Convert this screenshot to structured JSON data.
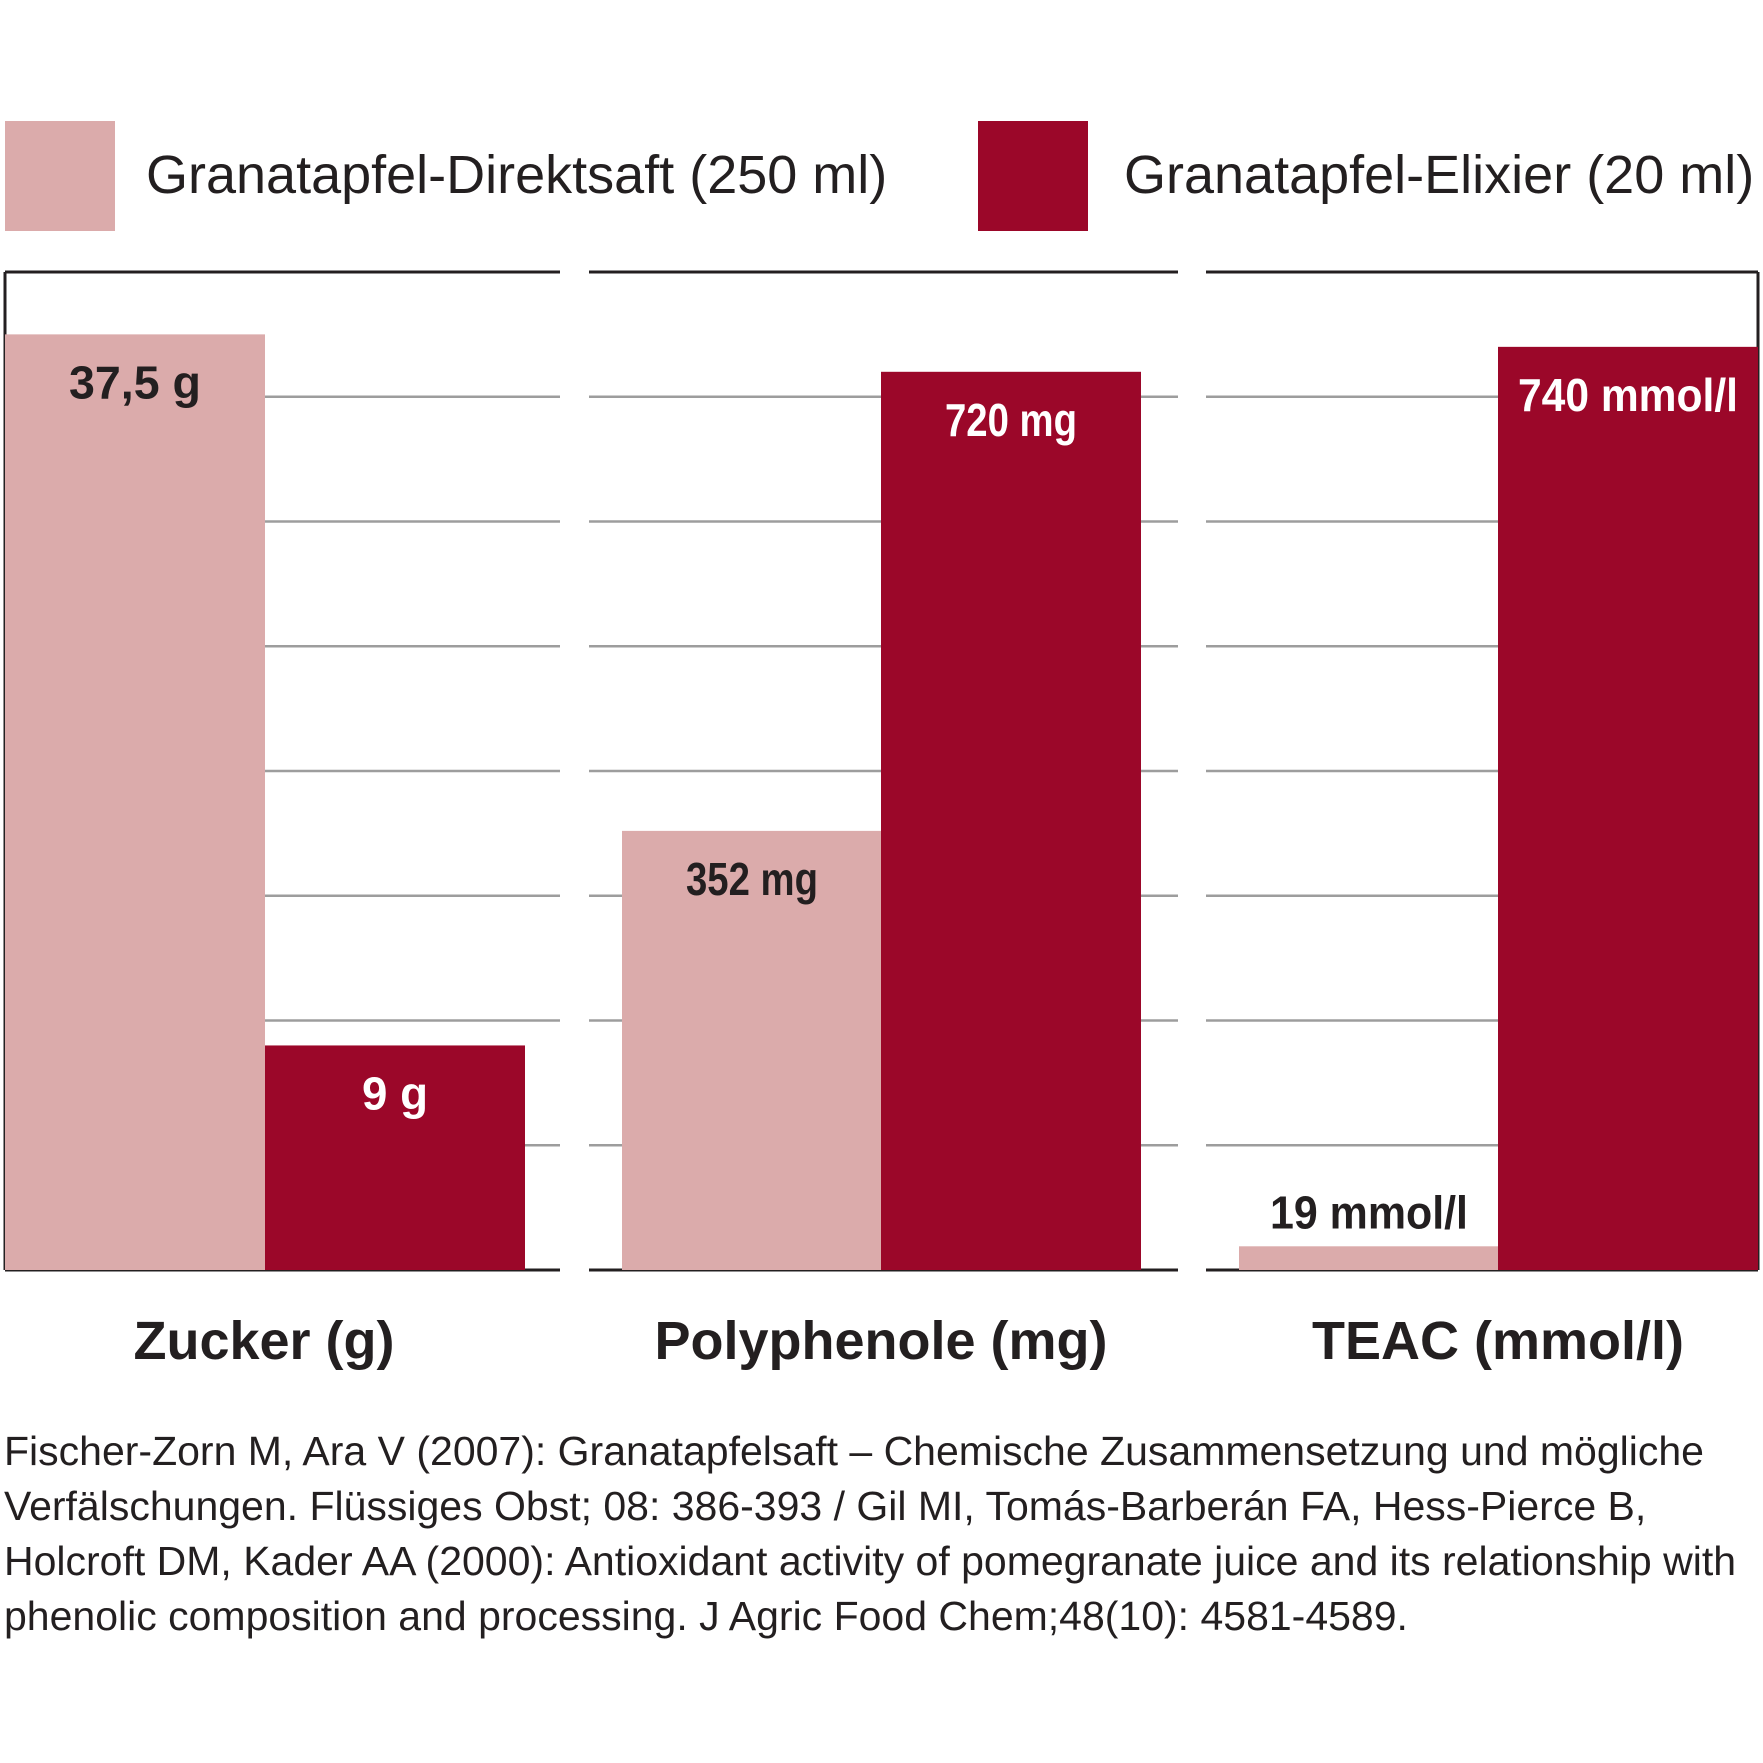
{
  "legend": [
    {
      "label": "Granatapfel-Direktsaft (250 ml)",
      "color": "#dbabab"
    },
    {
      "label": "Granatapfel-Elixier (20 ml)",
      "color": "#9b0729"
    }
  ],
  "chart_data": [
    {
      "type": "bar",
      "title": "Zucker (g)",
      "categories": [
        "Zucker (g)"
      ],
      "series": [
        {
          "name": "Granatapfel-Direktsaft (250 ml)",
          "values": [
            37.5
          ],
          "labels": [
            "37,5 g"
          ],
          "color": "#dbabab"
        },
        {
          "name": "Granatapfel-Elixier (20 ml)",
          "values": [
            9
          ],
          "labels": [
            "9 g"
          ],
          "color": "#9b0729"
        }
      ],
      "ylim": [
        0,
        40
      ],
      "grid": true
    },
    {
      "type": "bar",
      "title": "Polyphenole (mg)",
      "categories": [
        "Polyphenole (mg)"
      ],
      "series": [
        {
          "name": "Granatapfel-Direktsaft (250 ml)",
          "values": [
            352
          ],
          "labels": [
            "352 mg"
          ],
          "color": "#dbabab"
        },
        {
          "name": "Granatapfel-Elixier (20 ml)",
          "values": [
            720
          ],
          "labels": [
            "720 mg"
          ],
          "color": "#9b0729"
        }
      ],
      "ylim": [
        0,
        800
      ],
      "grid": true
    },
    {
      "type": "bar",
      "title": "TEAC (mmol/l)",
      "categories": [
        "TEAC (mmol/l)"
      ],
      "series": [
        {
          "name": "Granatapfel-Direktsaft (250 ml)",
          "values": [
            19
          ],
          "labels": [
            "19 mmol/l"
          ],
          "color": "#dbabab"
        },
        {
          "name": "Granatapfel-Elixier (20 ml)",
          "values": [
            740
          ],
          "labels": [
            "740 mmol/l"
          ],
          "color": "#9b0729"
        }
      ],
      "ylim": [
        0,
        800
      ],
      "grid": true
    }
  ],
  "citation": "Fischer-Zorn M, Ara V (2007): Granatapfelsaft – Chemische Zusammensetzung und mögliche Verfälschungen. Flüssiges Obst; 08: 386-393 / Gil MI, Tomás-Barberán FA, Hess-Pierce B, Holcroft DM, Kader AA (2000): Antioxidant activity of pomegranate juice and its relationship with phenolic composition and processing. J Agric Food Chem;48(10): 4581-4589."
}
